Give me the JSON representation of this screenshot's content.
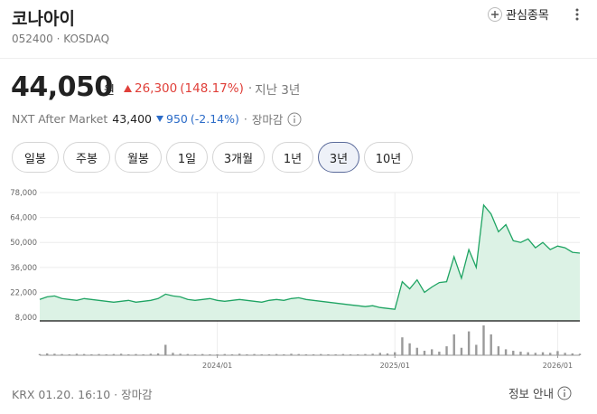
{
  "header": {
    "name": "코나아이",
    "code": "052400",
    "market": "KOSDAQ",
    "watch": "관심종목"
  },
  "price": {
    "value": "44,050",
    "unit": "원",
    "change": "26,300",
    "change_pct": "(148.17%)",
    "period": "지난 3년"
  },
  "nxt": {
    "label": "NXT After Market",
    "price": "43,400",
    "change": "950",
    "change_pct": "(-2.14%)",
    "status": "장마감"
  },
  "tabs": [
    "일봉",
    "주봉",
    "월봉",
    "1일",
    "3개월",
    "1년",
    "3년",
    "10년"
  ],
  "active_tab": 6,
  "chart_data": {
    "type": "area",
    "color": "#1fa463",
    "fill": "#dcf2e5",
    "volume_color": "#9a9a9a",
    "categories": [
      null,
      null,
      null,
      null,
      null,
      null,
      null,
      null,
      null,
      null,
      null,
      null,
      null,
      null,
      null,
      null,
      null,
      null,
      null,
      null,
      null,
      null,
      null,
      null,
      "2024/01",
      null,
      null,
      null,
      null,
      null,
      null,
      null,
      null,
      null,
      null,
      null,
      null,
      null,
      null,
      null,
      null,
      null,
      null,
      null,
      null,
      null,
      null,
      null,
      "2025/01",
      null,
      null,
      null,
      null,
      null,
      null,
      null,
      null,
      null,
      null,
      null,
      null,
      null,
      null,
      null,
      null,
      null,
      null,
      null,
      null,
      null,
      "2026/01",
      null,
      null,
      null
    ],
    "values": [
      18000,
      19500,
      20000,
      18500,
      18000,
      17500,
      18500,
      18000,
      17500,
      17000,
      16500,
      17000,
      17500,
      16500,
      17000,
      17500,
      18500,
      21000,
      20000,
      19500,
      18000,
      17500,
      18000,
      18500,
      17500,
      17000,
      17500,
      18000,
      17500,
      17000,
      16500,
      17500,
      18000,
      17500,
      18500,
      19000,
      18000,
      17500,
      17000,
      16500,
      16000,
      15500,
      15000,
      14500,
      14000,
      14500,
      13500,
      13000,
      12500,
      28000,
      24000,
      29000,
      22000,
      25000,
      27500,
      28000,
      42000,
      30000,
      46000,
      36000,
      71000,
      66000,
      56000,
      60000,
      51000,
      50000,
      52000,
      47000,
      50000,
      46000,
      48000,
      47000,
      44500,
      44050
    ],
    "volume": [
      4,
      6,
      5,
      4,
      3,
      5,
      4,
      3,
      4,
      3,
      4,
      5,
      3,
      4,
      3,
      5,
      6,
      35,
      8,
      5,
      4,
      3,
      4,
      3,
      3,
      4,
      3,
      5,
      3,
      4,
      3,
      3,
      4,
      3,
      5,
      4,
      3,
      3,
      4,
      3,
      3,
      4,
      3,
      3,
      4,
      5,
      8,
      6,
      10,
      60,
      40,
      25,
      15,
      20,
      12,
      30,
      70,
      25,
      80,
      35,
      100,
      70,
      30,
      20,
      15,
      12,
      10,
      8,
      10,
      8,
      14,
      8,
      6,
      5
    ],
    "volume_ylim": [
      0,
      100
    ],
    "ylim": [
      6000,
      78000
    ],
    "yticks": [
      {
        "value": 8000,
        "label": "8,000"
      },
      {
        "value": 22000,
        "label": "22,000"
      },
      {
        "value": 36000,
        "label": "36,000"
      },
      {
        "value": 50000,
        "label": "50,000"
      },
      {
        "value": 64000,
        "label": "64,000"
      },
      {
        "value": 78000,
        "label": "78,000"
      }
    ],
    "grid": true
  },
  "footer": {
    "time": "KRX 01.20. 16:10",
    "status": "장마감",
    "info": "정보 안내"
  }
}
